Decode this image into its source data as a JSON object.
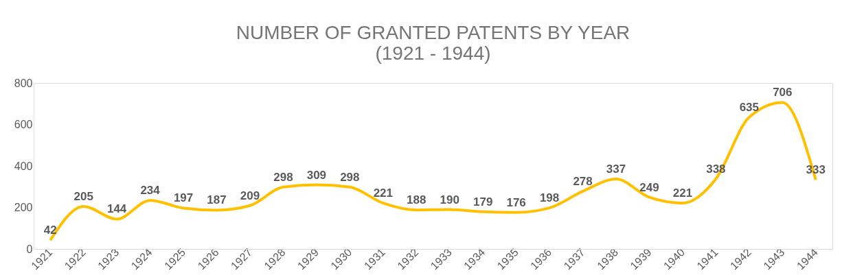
{
  "chart_data": {
    "type": "line",
    "title": [
      "NUMBER OF GRANTED PATENTS BY YEAR",
      "(1921 - 1944)"
    ],
    "categories": [
      "1921",
      "1922",
      "1923",
      "1924",
      "1925",
      "1926",
      "1927",
      "1928",
      "1929",
      "1930",
      "1931",
      "1932",
      "1933",
      "1934",
      "1935",
      "1936",
      "1937",
      "1938",
      "1939",
      "1940",
      "1941",
      "1942",
      "1943",
      "1944"
    ],
    "series": [
      {
        "color": "#ffc000",
        "values": [
          42,
          205,
          144,
          234,
          197,
          187,
          209,
          298,
          309,
          298,
          221,
          188,
          190,
          179,
          176,
          198,
          278,
          337,
          249,
          221,
          338,
          635,
          706,
          333
        ]
      }
    ],
    "ylim": [
      0,
      800
    ],
    "yticks": [
      0,
      200,
      400,
      600,
      800
    ],
    "grid": false,
    "data_labels": true,
    "marker": "none",
    "line_style": "solid"
  }
}
